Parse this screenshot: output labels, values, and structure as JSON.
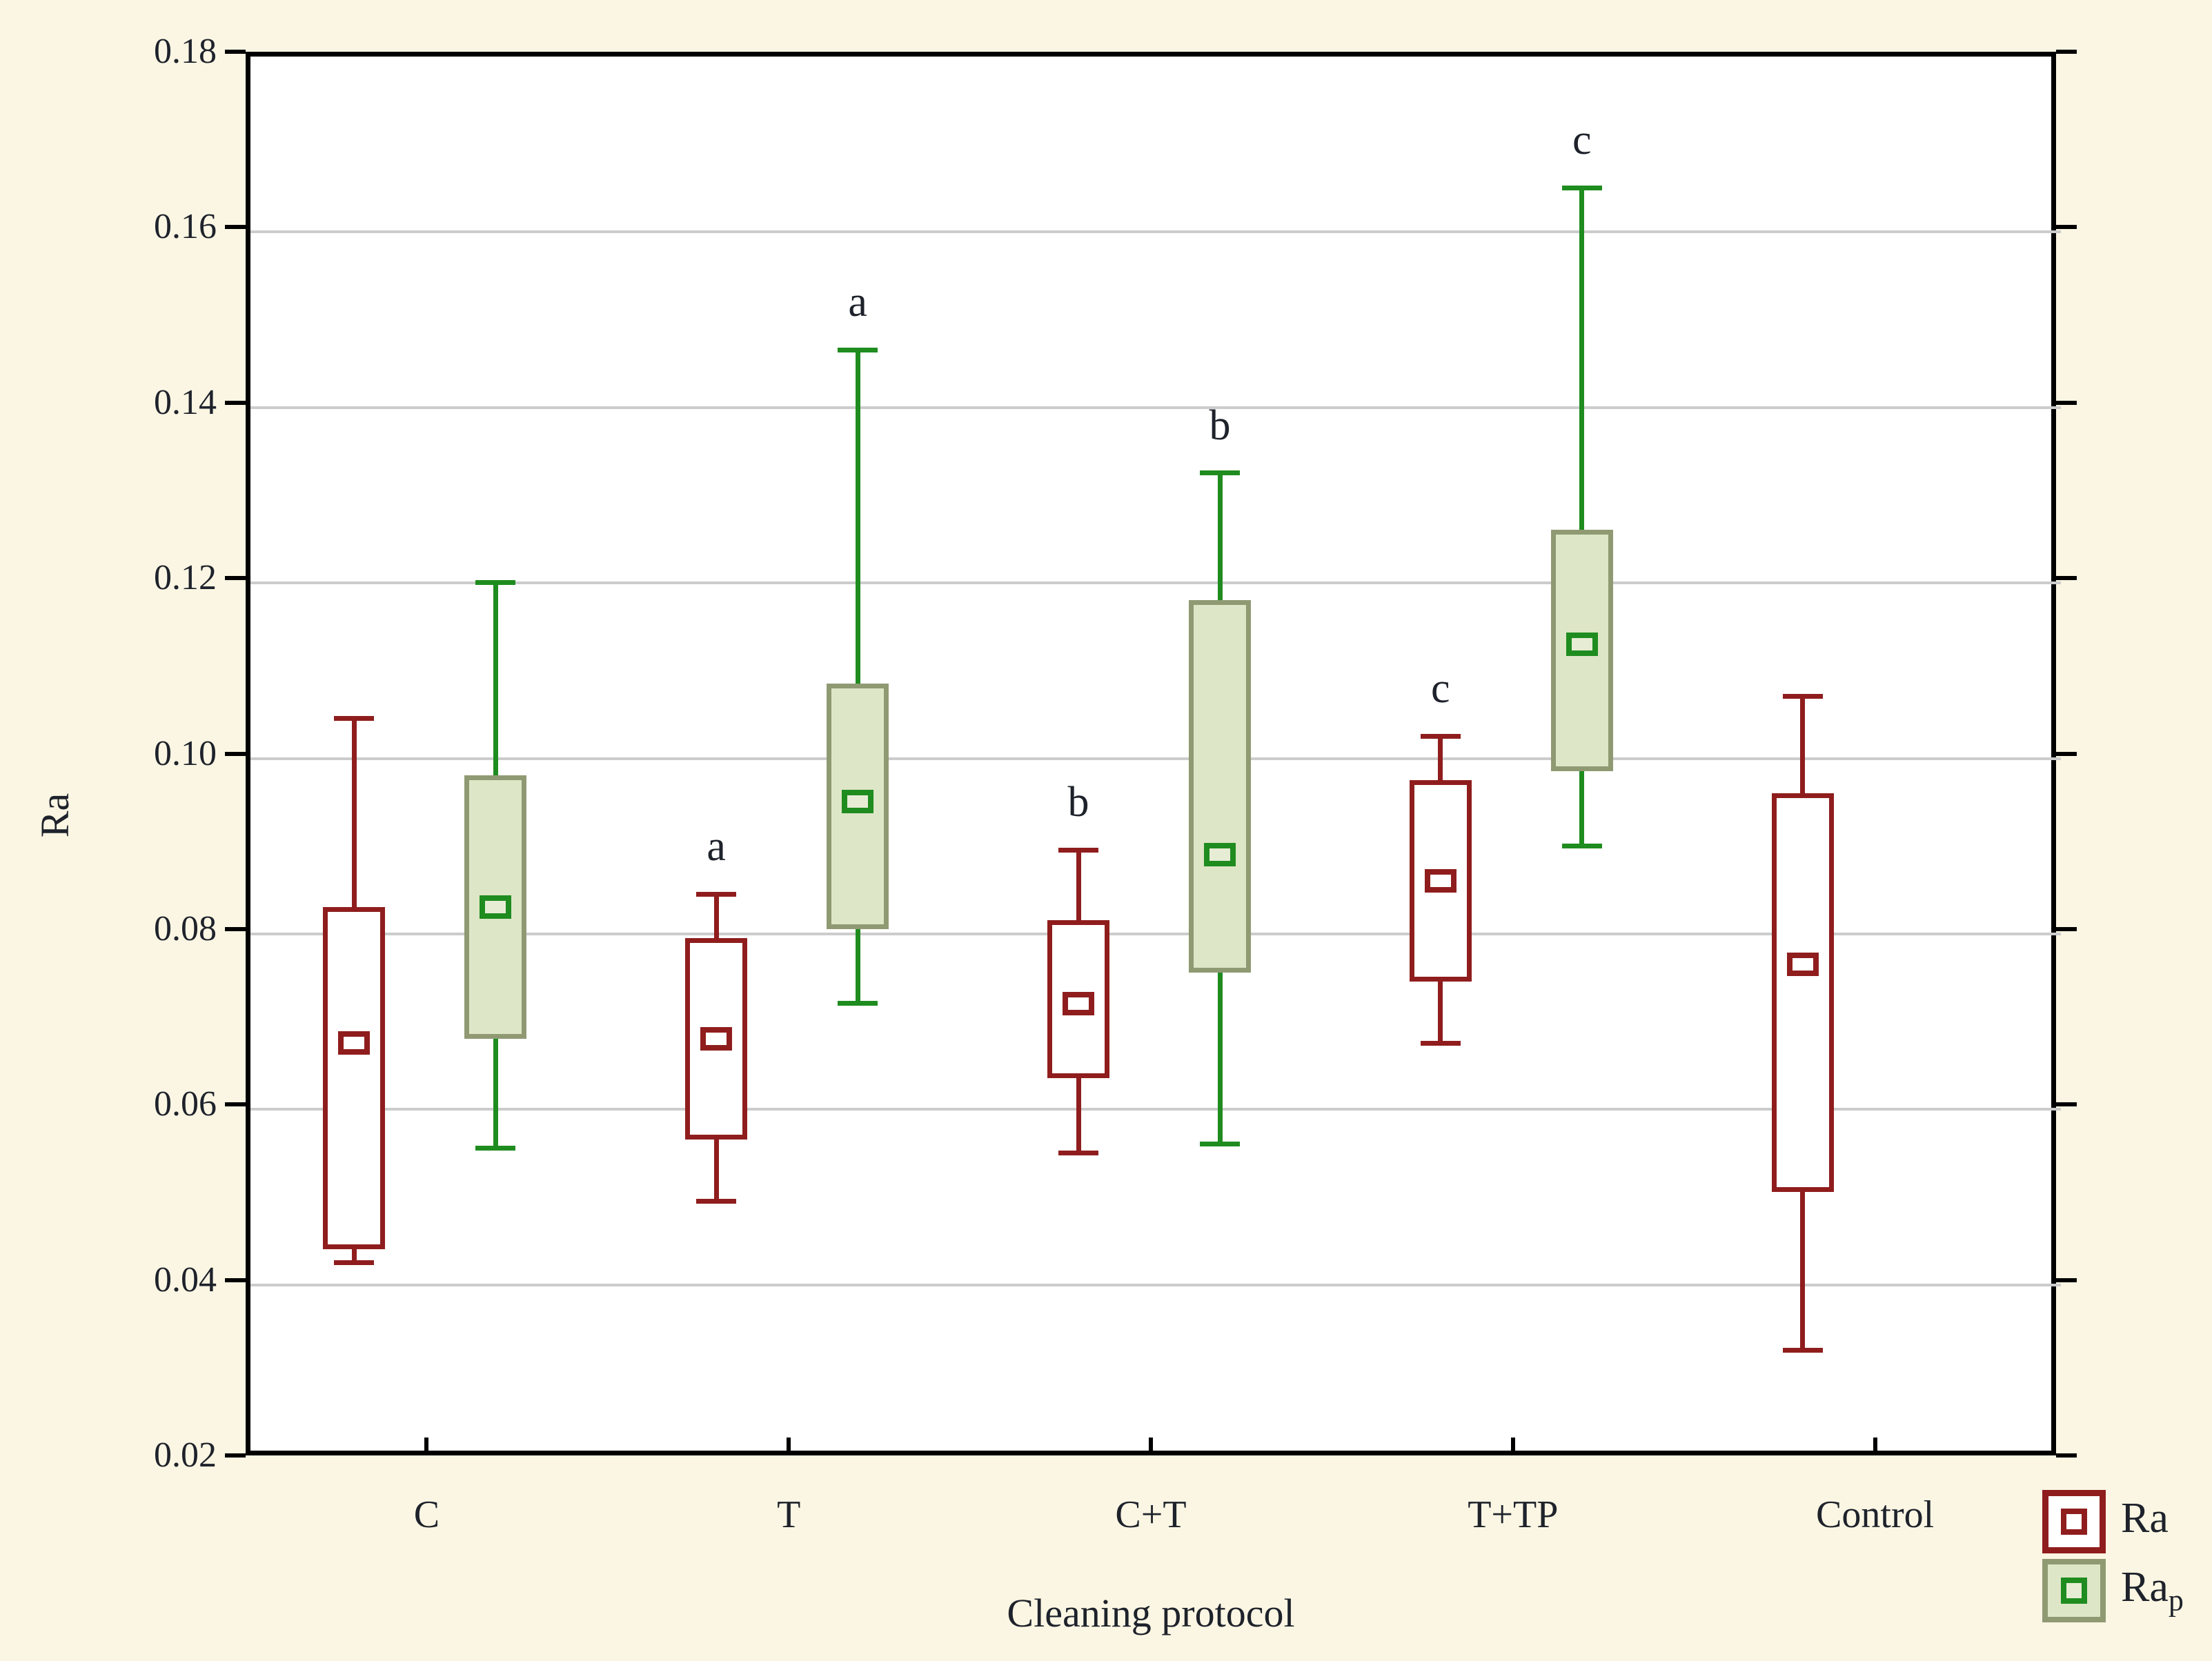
{
  "colors": {
    "background": "#fbf6e3",
    "plot_background": "#ffffff",
    "frame": "#000000",
    "grid": "#cccccc",
    "text": "#1e222b",
    "ra_stroke": "#8f1d1d",
    "ra_fill": "#ffffff",
    "rap_stroke": "#1f8c1f",
    "rap_box_border": "#8f9a73",
    "rap_fill": "#dde6c6",
    "rap_median_fill": "#e7edd5"
  },
  "chart_data": {
    "type": "boxplot",
    "title": "",
    "xlabel": "Cleaning protocol",
    "ylabel": "Ra",
    "ylim": [
      0.02,
      0.18
    ],
    "ytick_step": 0.02,
    "ytick_labels": [
      "0.18",
      "0.16",
      "0.14",
      "0.12",
      "0.10",
      "0.08",
      "0.06",
      "0.04",
      "0.02"
    ],
    "grid": "horizontal",
    "legend_position": "bottom-right",
    "categories": [
      "C",
      "T",
      "C+T",
      "T+TP",
      "Control"
    ],
    "series": [
      {
        "name": "Ra",
        "boxes": [
          {
            "category": "C",
            "whisker_low": 0.042,
            "q1": 0.0435,
            "median": 0.067,
            "q3": 0.0825,
            "whisker_high": 0.104,
            "letter": ""
          },
          {
            "category": "T",
            "whisker_low": 0.049,
            "q1": 0.056,
            "median": 0.0675,
            "q3": 0.079,
            "whisker_high": 0.084,
            "letter": "a"
          },
          {
            "category": "C+T",
            "whisker_low": 0.0545,
            "q1": 0.063,
            "median": 0.0715,
            "q3": 0.081,
            "whisker_high": 0.089,
            "letter": "b"
          },
          {
            "category": "T+TP",
            "whisker_low": 0.067,
            "q1": 0.074,
            "median": 0.0855,
            "q3": 0.097,
            "whisker_high": 0.102,
            "letter": "c"
          },
          {
            "category": "Control",
            "whisker_low": 0.032,
            "q1": 0.05,
            "median": 0.076,
            "q3": 0.0955,
            "whisker_high": 0.1065,
            "letter": ""
          }
        ]
      },
      {
        "name": "Rap",
        "boxes": [
          {
            "category": "C",
            "whisker_low": 0.055,
            "q1": 0.0675,
            "median": 0.0825,
            "q3": 0.0975,
            "whisker_high": 0.1195,
            "letter": ""
          },
          {
            "category": "T",
            "whisker_low": 0.0715,
            "q1": 0.08,
            "median": 0.0945,
            "q3": 0.108,
            "whisker_high": 0.146,
            "letter": "a"
          },
          {
            "category": "C+T",
            "whisker_low": 0.0555,
            "q1": 0.075,
            "median": 0.0885,
            "q3": 0.1175,
            "whisker_high": 0.132,
            "letter": "b"
          },
          {
            "category": "T+TP",
            "whisker_low": 0.0895,
            "q1": 0.098,
            "median": 0.1125,
            "q3": 0.1255,
            "whisker_high": 0.1645,
            "letter": "c"
          },
          null
        ]
      }
    ],
    "legend": [
      {
        "label": "Ra",
        "sub": ""
      },
      {
        "label": "Ra",
        "sub": "p"
      }
    ]
  }
}
